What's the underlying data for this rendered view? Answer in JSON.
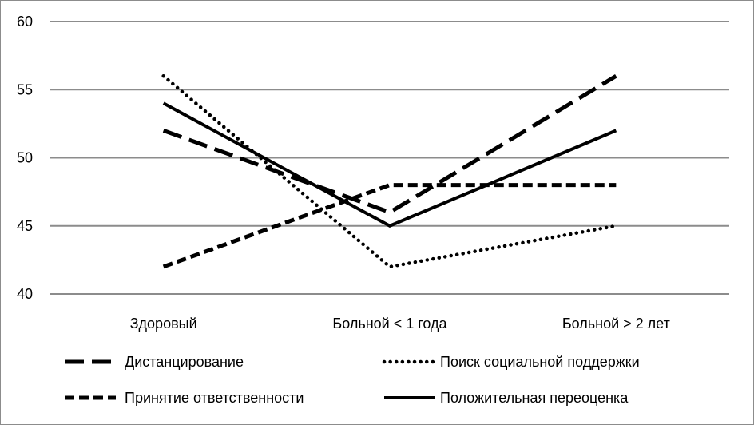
{
  "chart_data": {
    "type": "line",
    "categories": [
      "Здоровый",
      "Больной < 1 года",
      "Больной > 2 лет"
    ],
    "ylim": [
      40,
      60
    ],
    "yticks": [
      40,
      45,
      50,
      55,
      60
    ],
    "grid": true,
    "legend_placement": "bottom",
    "series": [
      {
        "name": "Дистанцирование",
        "values": [
          52,
          46,
          56
        ],
        "style": "long-dash"
      },
      {
        "name": "Поиск социальной поддержки",
        "values": [
          56,
          42,
          45
        ],
        "style": "dotted"
      },
      {
        "name": "Принятие ответственности",
        "values": [
          42,
          48,
          48
        ],
        "style": "short-dash"
      },
      {
        "name": "Положительная переоценка",
        "values": [
          54,
          45,
          52
        ],
        "style": "solid"
      }
    ]
  }
}
